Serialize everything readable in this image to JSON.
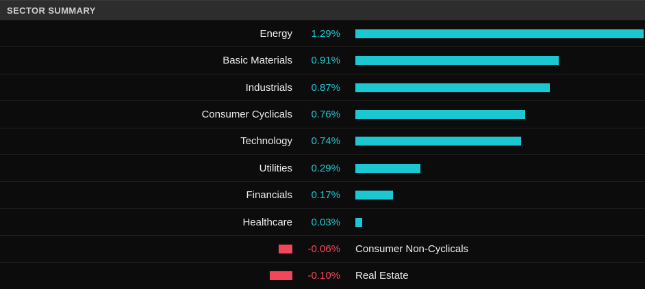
{
  "header": {
    "title": "SECTOR SUMMARY"
  },
  "colors": {
    "positive": "#1bc8d1",
    "negative": "#f4465a",
    "name_text": "#ededed",
    "header_bg": "#2d2d2d",
    "background": "#0c0c0c"
  },
  "chart_data": {
    "type": "bar",
    "orientation": "horizontal",
    "title": "SECTOR SUMMARY",
    "unit": "%",
    "axis_max_abs": 1.29,
    "legend": "none",
    "grid": false,
    "categories": [
      "Energy",
      "Basic Materials",
      "Industrials",
      "Consumer Cyclicals",
      "Technology",
      "Utilities",
      "Financials",
      "Healthcare",
      "Consumer Non-Cyclicals",
      "Real Estate"
    ],
    "values": [
      1.29,
      0.91,
      0.87,
      0.76,
      0.74,
      0.29,
      0.17,
      0.03,
      -0.06,
      -0.1
    ],
    "labels": [
      "1.29%",
      "0.91%",
      "0.87%",
      "0.76%",
      "0.74%",
      "0.29%",
      "0.17%",
      "0.03%",
      "-0.06%",
      "-0.10%"
    ]
  }
}
